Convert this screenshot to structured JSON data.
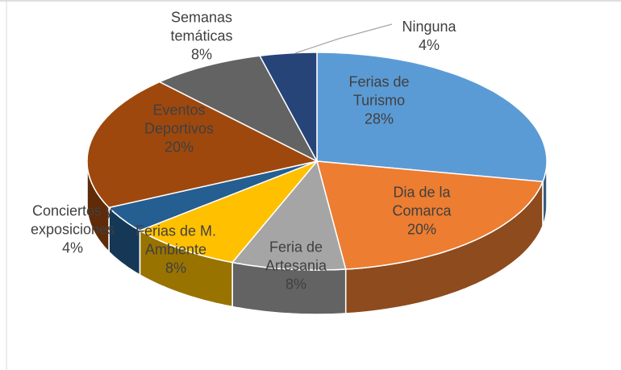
{
  "chart_data": {
    "type": "pie",
    "categories": [
      "Ferias de Turismo",
      "Dia de la Comarca",
      "Feria de Artesania",
      "Ferias de M. Ambiente",
      "Conciertos y exposiciones",
      "Eventos Deportivos",
      "Semanas temáticas",
      "Ninguna"
    ],
    "values": [
      28,
      20,
      8,
      8,
      4,
      20,
      8,
      4
    ],
    "value_labels": [
      "28%",
      "20%",
      "8%",
      "8%",
      "4%",
      "20%",
      "8%",
      "4%"
    ],
    "colors": [
      "#5b9bd5",
      "#ed7d31",
      "#a5a5a5",
      "#ffc000",
      "#255e91",
      "#9e480e",
      "#636363",
      "#264478"
    ]
  }
}
